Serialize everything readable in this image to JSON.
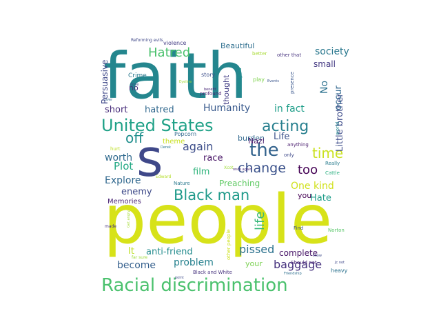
{
  "words": [
    {
      "text": "people",
      "color": "#d7e219",
      "rot": 0
    },
    {
      "text": "faith",
      "color": "#24868e",
      "rot": 0
    },
    {
      "text": "s",
      "color": "#3f4889",
      "rot": 0
    },
    {
      "text": "Racial discrimination",
      "color": "#4ac16d",
      "rot": 0
    },
    {
      "text": "United States",
      "color": "#1fa187",
      "rot": 0
    },
    {
      "text": "acting",
      "color": "#277f8e",
      "rot": 0
    },
    {
      "text": "Black man",
      "color": "#1f9a8a",
      "rot": 0
    },
    {
      "text": "the",
      "color": "#33638d",
      "rot": 0
    },
    {
      "text": "time",
      "color": "#cae11f",
      "rot": 0
    },
    {
      "text": "change",
      "color": "#3b528b",
      "rot": 0
    },
    {
      "text": "too",
      "color": "#440154",
      "rot": 0
    },
    {
      "text": "off",
      "color": "#218f8d",
      "rot": 0
    },
    {
      "text": "again",
      "color": "#3d4e8a",
      "rot": 0
    },
    {
      "text": "life",
      "color": "#35b779",
      "rot": -90
    },
    {
      "text": "pissed",
      "color": "#2c728e",
      "rot": 0
    },
    {
      "text": "baggage",
      "color": "#46327e",
      "rot": 0
    },
    {
      "text": "Hatred",
      "color": "#4ac16d",
      "rot": 0
    },
    {
      "text": "hatred",
      "color": "#31688e",
      "rot": 0
    },
    {
      "text": "Humanity",
      "color": "#38598c",
      "rot": 0
    },
    {
      "text": "in fact",
      "color": "#1f9e89",
      "rot": 0
    },
    {
      "text": "society",
      "color": "#2a788e",
      "rot": 0
    },
    {
      "text": "Life",
      "color": "#3b528b",
      "rot": 0
    },
    {
      "text": "Plot",
      "color": "#22a884",
      "rot": 0
    },
    {
      "text": "worth",
      "color": "#306a8e",
      "rot": 0
    },
    {
      "text": "race",
      "color": "#471365",
      "rot": 0
    },
    {
      "text": "film",
      "color": "#2fb47c",
      "rot": 0
    },
    {
      "text": "enemy",
      "color": "#3e4a89",
      "rot": 0
    },
    {
      "text": "Explore",
      "color": "#31688e",
      "rot": 0
    },
    {
      "text": "One kind",
      "color": "#d0e11c",
      "rot": 0
    },
    {
      "text": "Hate",
      "color": "#1e9c89",
      "rot": 0
    },
    {
      "text": "short",
      "color": "#472c7a",
      "rot": 0
    },
    {
      "text": "become",
      "color": "#35608d",
      "rot": 0
    },
    {
      "text": "problem",
      "color": "#26818e",
      "rot": 0
    },
    {
      "text": "anti-friend",
      "color": "#228b8d",
      "rot": 0
    },
    {
      "text": "complete",
      "color": "#481668",
      "rot": 0
    },
    {
      "text": "Preaching",
      "color": "#5ec962",
      "rot": 0
    },
    {
      "text": "Persuasive",
      "color": "#3f4889",
      "rot": -90
    },
    {
      "text": "Little brother",
      "color": "#3e4c8a",
      "rot": -90
    },
    {
      "text": "occur",
      "color": "#31678e",
      "rot": -90
    },
    {
      "text": "No",
      "color": "#2c718e",
      "rot": -90
    },
    {
      "text": "small",
      "color": "#443983",
      "rot": 0
    },
    {
      "text": "Beautiful",
      "color": "#2e6e8e",
      "rot": 0
    },
    {
      "text": "thought",
      "color": "#433e85",
      "rot": -90
    },
    {
      "text": "burden",
      "color": "#31688e",
      "rot": 0
    },
    {
      "text": "theme",
      "color": "#c8e020",
      "rot": 0
    },
    {
      "text": "Nazi",
      "color": "#48186a",
      "rot": 0
    },
    {
      "text": "It",
      "color": "#bddf26",
      "rot": 0
    },
    {
      "text": "you",
      "color": "#440154",
      "rot": 0
    },
    {
      "text": "your",
      "color": "#7ad151",
      "rot": 0
    },
    {
      "text": "Memories",
      "color": "#482374",
      "rot": 0
    },
    {
      "text": "Crime",
      "color": "#2a788e",
      "rot": 0
    },
    {
      "text": "no",
      "color": "#46307e",
      "rot": 0
    },
    {
      "text": "story",
      "color": "#3c4f8a",
      "rot": 0
    },
    {
      "text": "play",
      "color": "#7fd34e",
      "rot": 0
    },
    {
      "text": "better",
      "color": "#a8db34",
      "rot": 0
    },
    {
      "text": "other that",
      "color": "#46327e",
      "rot": 0
    },
    {
      "text": "presence",
      "color": "#39568c",
      "rot": -90
    },
    {
      "text": "violence",
      "color": "#433d84",
      "rot": 0
    },
    {
      "text": "Popcorn",
      "color": "#31688e",
      "rot": 0
    },
    {
      "text": "profound",
      "color": "#481f70",
      "rot": 0
    },
    {
      "text": "anything",
      "color": "#481b6d",
      "rot": 0
    },
    {
      "text": "only",
      "color": "#3e4989",
      "rot": 0
    },
    {
      "text": "Really",
      "color": "#287c8e",
      "rot": 0
    },
    {
      "text": "Cattle",
      "color": "#29af7f",
      "rot": 0
    },
    {
      "text": "world",
      "color": "#24878e",
      "rot": -90
    },
    {
      "text": "Find",
      "color": "#3b528b",
      "rot": 0
    },
    {
      "text": "Norton",
      "color": "#56c667",
      "rot": 0
    },
    {
      "text": "heavy",
      "color": "#2c728e",
      "rot": 0
    },
    {
      "text": "Black and White",
      "color": "#46327e",
      "rot": 0
    },
    {
      "text": "other people",
      "color": "#cde11d",
      "rot": -90
    },
    {
      "text": "Nature",
      "color": "#2a788e",
      "rot": 0
    },
    {
      "text": "Edward",
      "color": "#b5de2b",
      "rot": 0
    },
    {
      "text": "Xcot",
      "color": "#a0da39",
      "rot": 0
    },
    {
      "text": "miss you",
      "color": "#21918c",
      "rot": -90
    },
    {
      "text": "Reforming evils",
      "color": "#3f4788",
      "rot": 0
    },
    {
      "text": "Should not",
      "color": "#482475",
      "rot": 0
    },
    {
      "text": "point",
      "color": "#3e4a89",
      "rot": 0
    },
    {
      "text": "Friendship",
      "color": "#2e6f8e",
      "rot": 0
    },
    {
      "text": "Get angry",
      "color": "#a5db36",
      "rot": -90
    },
    {
      "text": "made",
      "color": "#46337f",
      "rot": 0
    },
    {
      "text": "hurt",
      "color": "#bddf26",
      "rot": 0
    },
    {
      "text": "done",
      "color": "#414487",
      "rot": 0
    },
    {
      "text": "Eyeline",
      "color": "#a2da37",
      "rot": 0
    },
    {
      "text": "benefit",
      "color": "#482677",
      "rot": 0
    },
    {
      "text": "Events",
      "color": "#3a548c",
      "rot": 0
    },
    {
      "text": "Jc not",
      "color": "#3f4889",
      "rot": 0
    },
    {
      "text": "show",
      "color": "#3e4a89",
      "rot": 0
    },
    {
      "text": "far sure",
      "color": "#a0da39",
      "rot": 0
    },
    {
      "text": "over",
      "color": "#33638d",
      "rot": 0
    },
    {
      "text": "once again",
      "color": "#482878",
      "rot": 0
    },
    {
      "text": "Derek",
      "color": "#2a788e",
      "rot": 0
    }
  ]
}
